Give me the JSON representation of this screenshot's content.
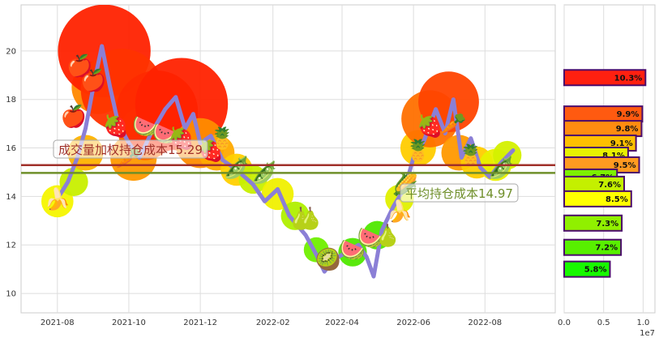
{
  "chart_data": [
    {
      "type": "line",
      "x_ticks": [
        "2021-08",
        "2021-10",
        "2021-12",
        "2022-02",
        "2022-04",
        "2022-06",
        "2022-08"
      ],
      "y_ticks": [
        "10",
        "12",
        "14",
        "16",
        "18",
        "20"
      ],
      "ylim": [
        9.2,
        21.9
      ],
      "xlim": [
        "2021-07-01",
        "2022-09-30"
      ],
      "grid": true,
      "series": [
        {
          "style": "price-line",
          "color": "#8b7fd6",
          "points": [
            {
              "x": "2021-08-01",
              "y": 13.9
            },
            {
              "x": "2021-08-10",
              "y": 14.6
            },
            {
              "x": "2021-08-18",
              "y": 15.6
            },
            {
              "x": "2021-08-25",
              "y": 16.8
            },
            {
              "x": "2021-09-01",
              "y": 18.6
            },
            {
              "x": "2021-09-08",
              "y": 20.2
            },
            {
              "x": "2021-09-15",
              "y": 18.5
            },
            {
              "x": "2021-09-22",
              "y": 17.0
            },
            {
              "x": "2021-10-01",
              "y": 16.2
            },
            {
              "x": "2021-10-10",
              "y": 15.6
            },
            {
              "x": "2021-10-20",
              "y": 16.6
            },
            {
              "x": "2021-11-01",
              "y": 17.6
            },
            {
              "x": "2021-11-10",
              "y": 18.1
            },
            {
              "x": "2021-11-18",
              "y": 16.8
            },
            {
              "x": "2021-11-25",
              "y": 17.4
            },
            {
              "x": "2021-12-01",
              "y": 16.2
            },
            {
              "x": "2021-12-10",
              "y": 16.5
            },
            {
              "x": "2021-12-20",
              "y": 15.5
            },
            {
              "x": "2022-01-01",
              "y": 15.1
            },
            {
              "x": "2022-01-15",
              "y": 14.5
            },
            {
              "x": "2022-01-25",
              "y": 13.8
            },
            {
              "x": "2022-02-05",
              "y": 14.3
            },
            {
              "x": "2022-02-15",
              "y": 13.2
            },
            {
              "x": "2022-03-01",
              "y": 12.4
            },
            {
              "x": "2022-03-10",
              "y": 11.6
            },
            {
              "x": "2022-03-17",
              "y": 10.9
            },
            {
              "x": "2022-03-25",
              "y": 11.4
            },
            {
              "x": "2022-04-05",
              "y": 11.7
            },
            {
              "x": "2022-04-15",
              "y": 12.0
            },
            {
              "x": "2022-04-22",
              "y": 11.5
            },
            {
              "x": "2022-04-28",
              "y": 10.7
            },
            {
              "x": "2022-05-05",
              "y": 12.6
            },
            {
              "x": "2022-05-15",
              "y": 13.6
            },
            {
              "x": "2022-05-25",
              "y": 14.4
            },
            {
              "x": "2022-06-01",
              "y": 15.6
            },
            {
              "x": "2022-06-10",
              "y": 16.3
            },
            {
              "x": "2022-06-20",
              "y": 17.6
            },
            {
              "x": "2022-06-28",
              "y": 16.6
            },
            {
              "x": "2022-07-05",
              "y": 18.0
            },
            {
              "x": "2022-07-12",
              "y": 15.6
            },
            {
              "x": "2022-07-20",
              "y": 16.4
            },
            {
              "x": "2022-07-28",
              "y": 15.2
            },
            {
              "x": "2022-08-05",
              "y": 14.8
            },
            {
              "x": "2022-08-15",
              "y": 15.4
            },
            {
              "x": "2022-08-25",
              "y": 15.9
            }
          ]
        },
        {
          "style": "bubbles",
          "bubbles": [
            {
              "x": "2021-08-01",
              "y": 13.8,
              "size": 0.9,
              "color": "#f5f500"
            },
            {
              "x": "2021-08-15",
              "y": 14.6,
              "size": 0.8,
              "color": "#c8ef00"
            },
            {
              "x": "2021-08-25",
              "y": 15.8,
              "size": 1.0,
              "color": "#ffb300"
            },
            {
              "x": "2021-09-05",
              "y": 18.5,
              "size": 1.5,
              "color": "#ff8800"
            },
            {
              "x": "2021-09-10",
              "y": 20.0,
              "size": 2.6,
              "color": "#ff2200"
            },
            {
              "x": "2021-09-25",
              "y": 18.4,
              "size": 2.3,
              "color": "#ff3300"
            },
            {
              "x": "2021-10-05",
              "y": 15.6,
              "size": 1.3,
              "color": "#ff9900"
            },
            {
              "x": "2021-10-15",
              "y": 16.6,
              "size": 1.5,
              "color": "#ff6600"
            },
            {
              "x": "2021-10-25",
              "y": 17.5,
              "size": 2.3,
              "color": "#ff2a00"
            },
            {
              "x": "2021-11-15",
              "y": 17.8,
              "size": 2.6,
              "color": "#ff2200"
            },
            {
              "x": "2021-12-01",
              "y": 16.2,
              "size": 1.4,
              "color": "#ff8c00"
            },
            {
              "x": "2021-12-15",
              "y": 15.8,
              "size": 1.0,
              "color": "#ffaa00"
            },
            {
              "x": "2022-01-01",
              "y": 15.1,
              "size": 0.9,
              "color": "#ffd000"
            },
            {
              "x": "2022-01-15",
              "y": 14.7,
              "size": 0.8,
              "color": "#c8ef00"
            },
            {
              "x": "2022-02-05",
              "y": 14.1,
              "size": 0.9,
              "color": "#f0f000"
            },
            {
              "x": "2022-02-20",
              "y": 13.2,
              "size": 0.8,
              "color": "#b0ef00"
            },
            {
              "x": "2022-03-10",
              "y": 11.8,
              "size": 0.7,
              "color": "#70ef00"
            },
            {
              "x": "2022-04-10",
              "y": 11.7,
              "size": 0.8,
              "color": "#50e800"
            },
            {
              "x": "2022-05-01",
              "y": 12.4,
              "size": 0.8,
              "color": "#50e800"
            },
            {
              "x": "2022-05-20",
              "y": 13.9,
              "size": 0.8,
              "color": "#e0f000"
            },
            {
              "x": "2022-06-05",
              "y": 16.0,
              "size": 1.0,
              "color": "#ffcc00"
            },
            {
              "x": "2022-06-15",
              "y": 17.2,
              "size": 1.6,
              "color": "#ff7000"
            },
            {
              "x": "2022-07-01",
              "y": 17.9,
              "size": 1.7,
              "color": "#ff4400"
            },
            {
              "x": "2022-07-10",
              "y": 15.8,
              "size": 1.0,
              "color": "#ff9900"
            },
            {
              "x": "2022-07-25",
              "y": 15.4,
              "size": 0.9,
              "color": "#ffcc00"
            },
            {
              "x": "2022-08-10",
              "y": 15.3,
              "size": 0.9,
              "color": "#e8f000"
            },
            {
              "x": "2022-08-20",
              "y": 15.7,
              "size": 0.8,
              "color": "#d4f000"
            }
          ]
        }
      ],
      "hlines": [
        {
          "y": 15.29,
          "color": "#a0302a",
          "label": "成交量加权持仓成本15.29",
          "label_color": "#a0302a"
        },
        {
          "y": 14.97,
          "color": "#6f8f2a",
          "label": "平均持仓成本14.97",
          "label_color": "#6f8f2a"
        }
      ],
      "fruit_icons": [
        {
          "name": "apple-icon",
          "glyph": "🍎",
          "x": "2021-08-20",
          "y": 19.4
        },
        {
          "name": "apple-icon",
          "glyph": "🍎",
          "x": "2021-09-01",
          "y": 18.8
        },
        {
          "name": "apple-icon",
          "glyph": "🍎",
          "x": "2021-08-15",
          "y": 17.3
        },
        {
          "name": "strawberry-icon",
          "glyph": "🍓",
          "x": "2021-09-20",
          "y": 16.9
        },
        {
          "name": "watermelon-icon",
          "glyph": "🍉",
          "x": "2021-10-15",
          "y": 16.9
        },
        {
          "name": "watermelon-icon",
          "glyph": "🍉",
          "x": "2021-11-01",
          "y": 16.6
        },
        {
          "name": "strawberry-icon",
          "glyph": "🍓",
          "x": "2021-11-15",
          "y": 16.4
        },
        {
          "name": "radish-icon",
          "glyph": "🥕",
          "x": "2021-10-01",
          "y": 15.6
        },
        {
          "name": "strawberry-icon",
          "glyph": "🍓",
          "x": "2021-12-10",
          "y": 15.9
        },
        {
          "name": "pineapple-icon",
          "glyph": "🍍",
          "x": "2021-12-20",
          "y": 16.4
        },
        {
          "name": "peas-icon",
          "glyph": "🫛",
          "x": "2022-01-01",
          "y": 15.2
        },
        {
          "name": "peas-icon",
          "glyph": "🫛",
          "x": "2022-01-25",
          "y": 15.0
        },
        {
          "name": "banana-icon",
          "glyph": "🍌",
          "x": "2021-08-01",
          "y": 13.9
        },
        {
          "name": "pear-icon",
          "glyph": "🍐",
          "x": "2022-02-25",
          "y": 13.1
        },
        {
          "name": "pear-icon",
          "glyph": "🍐",
          "x": "2022-03-05",
          "y": 13.1
        },
        {
          "name": "kiwi-icon",
          "glyph": "🥝",
          "x": "2022-03-20",
          "y": 11.4
        },
        {
          "name": "watermelon-icon",
          "glyph": "🍉",
          "x": "2022-04-10",
          "y": 11.8
        },
        {
          "name": "watermelon-icon",
          "glyph": "🍉",
          "x": "2022-04-25",
          "y": 12.3
        },
        {
          "name": "pear-icon",
          "glyph": "🍐",
          "x": "2022-05-10",
          "y": 12.4
        },
        {
          "name": "banana-icon",
          "glyph": "🍌",
          "x": "2022-05-20",
          "y": 13.4
        },
        {
          "name": "corn-icon",
          "glyph": "🌽",
          "x": "2022-05-25",
          "y": 14.5
        },
        {
          "name": "strawberry-icon",
          "glyph": "🍓",
          "x": "2022-06-15",
          "y": 16.9
        },
        {
          "name": "pineapple-icon",
          "glyph": "🍍",
          "x": "2022-06-05",
          "y": 15.9
        },
        {
          "name": "carrot-icon",
          "glyph": "🥕",
          "x": "2022-07-05",
          "y": 17.0
        },
        {
          "name": "pineapple-icon",
          "glyph": "🍍",
          "x": "2022-07-20",
          "y": 15.7
        },
        {
          "name": "peas-icon",
          "glyph": "🫛",
          "x": "2022-08-15",
          "y": 15.2
        }
      ]
    },
    {
      "type": "bar",
      "orientation": "horizontal",
      "x_ticks": [
        "0.0",
        "0.5",
        "1.0"
      ],
      "x_scale_label": "1e7",
      "xlim": [
        0,
        11500000
      ],
      "ylim": [
        9.2,
        21.9
      ],
      "bars": [
        {
          "y": 18.9,
          "value": 10300000,
          "label": "10.3%",
          "color": "#ff2010"
        },
        {
          "y": 17.4,
          "value": 9900000,
          "label": "9.9%",
          "color": "#ff5a10"
        },
        {
          "y": 16.8,
          "value": 9800000,
          "label": "9.8%",
          "color": "#ff8c10"
        },
        {
          "y": 16.2,
          "value": 9100000,
          "label": "9.1%",
          "color": "#ffc000"
        },
        {
          "y": 15.7,
          "value": 8100000,
          "label": "8.1%",
          "color": "#e8f000"
        },
        {
          "y": 15.3,
          "value": 9500000,
          "label": "9.5%",
          "color": "#ff9a20"
        },
        {
          "y": 14.8,
          "value": 6700000,
          "label": "6.7%",
          "color": "#7cf000"
        },
        {
          "y": 14.5,
          "value": 7600000,
          "label": "7.6%",
          "color": "#c4f000"
        },
        {
          "y": 13.9,
          "value": 8500000,
          "label": "8.5%",
          "color": "#ffff00"
        },
        {
          "y": 12.9,
          "value": 7300000,
          "label": "7.3%",
          "color": "#90f000"
        },
        {
          "y": 11.9,
          "value": 7200000,
          "label": "7.2%",
          "color": "#58f000"
        },
        {
          "y": 11.0,
          "value": 5800000,
          "label": "5.8%",
          "color": "#18f800"
        }
      ]
    }
  ],
  "colors": {
    "axes_edge": "#cccccc",
    "grid": "#dddddd",
    "bar_edge": "#4b0b6b"
  }
}
